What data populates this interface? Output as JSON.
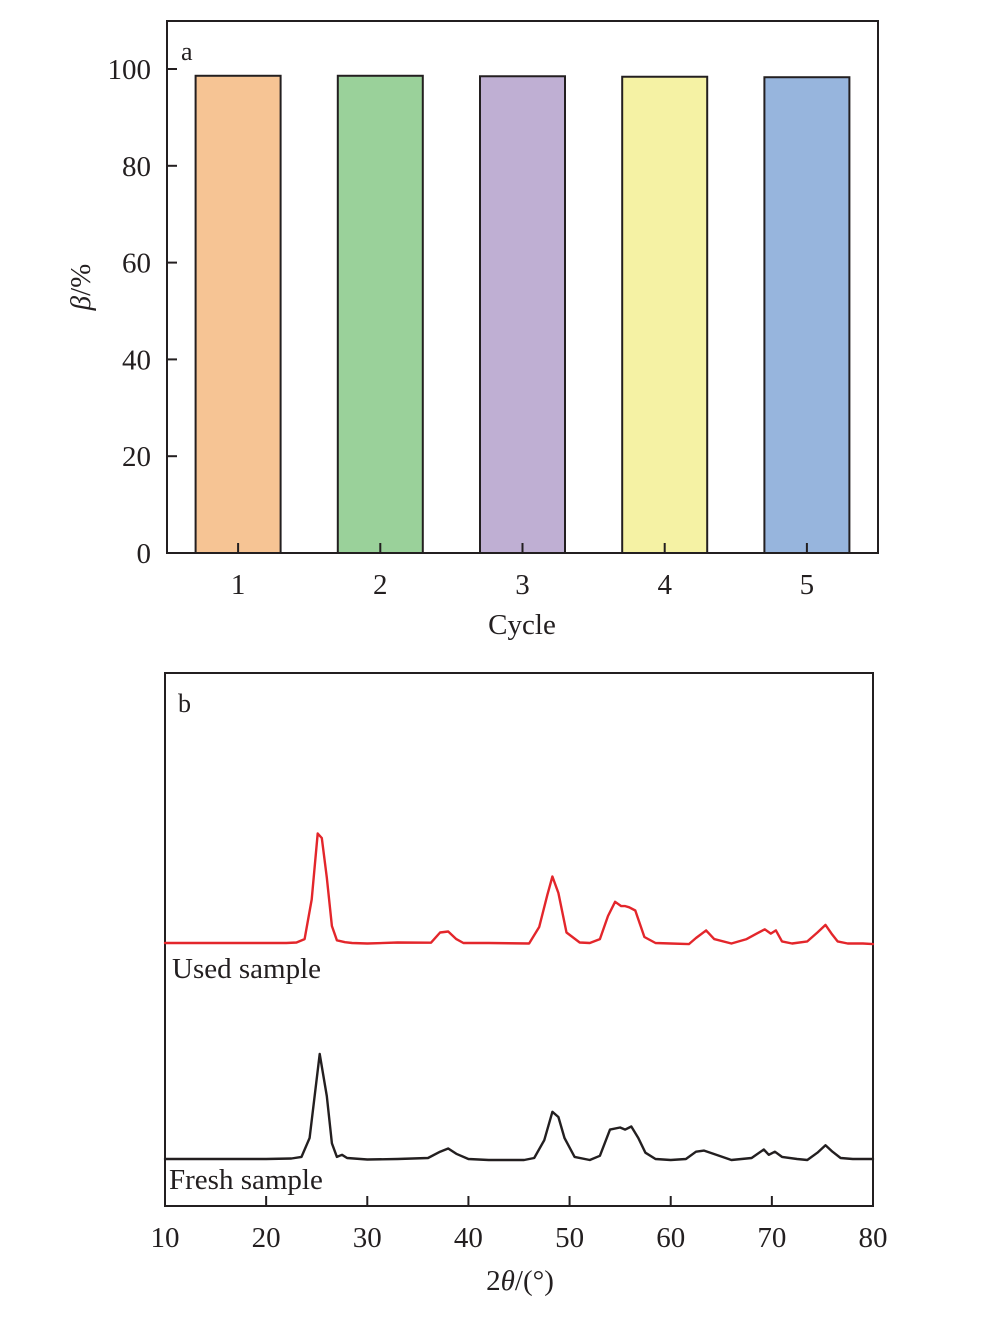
{
  "chart_data": [
    {
      "type": "bar",
      "panel_label": "a",
      "categories": [
        "1",
        "2",
        "3",
        "4",
        "5"
      ],
      "values": [
        98.6,
        98.6,
        98.5,
        98.4,
        98.3
      ],
      "bar_colors": [
        "#f6c494",
        "#9ad19a",
        "#bfafd3",
        "#f5f2a4",
        "#97b5dd"
      ],
      "xlabel": "Cycle",
      "ylabel_symbol": "β",
      "ylabel_unit": "/%",
      "ylim": [
        0,
        110
      ],
      "yticks": [
        0,
        20,
        40,
        60,
        80,
        100
      ],
      "grid": false
    },
    {
      "type": "line",
      "panel_label": "b",
      "xlabel_prefix": "2",
      "xlabel_symbol": "θ",
      "xlabel_unit": "/(°)",
      "xlim": [
        10,
        80
      ],
      "xticks": [
        10,
        20,
        30,
        40,
        50,
        60,
        70,
        80
      ],
      "y_axis_values_shown": false,
      "grid": false,
      "series": [
        {
          "name": "Used sample",
          "color": "#e3262b",
          "baseline": 0.5,
          "points": [
            [
              10,
              0.5
            ],
            [
              20,
              0.5
            ],
            [
              22,
              0.5
            ],
            [
              23,
              1
            ],
            [
              23.8,
              4
            ],
            [
              24.5,
              40
            ],
            [
              25.1,
              100
            ],
            [
              25.5,
              96
            ],
            [
              26,
              60
            ],
            [
              26.5,
              16
            ],
            [
              27,
              3
            ],
            [
              27.8,
              1.2
            ],
            [
              28.5,
              0.5
            ],
            [
              30,
              0
            ],
            [
              33,
              1
            ],
            [
              36.3,
              0.8
            ],
            [
              37.2,
              10
            ],
            [
              38,
              11
            ],
            [
              38.8,
              4
            ],
            [
              39.5,
              0.5
            ],
            [
              42,
              0.5
            ],
            [
              46,
              0
            ],
            [
              47,
              15
            ],
            [
              47.8,
              44
            ],
            [
              48.3,
              61
            ],
            [
              48.9,
              46
            ],
            [
              49.7,
              10
            ],
            [
              51,
              1
            ],
            [
              52,
              0.5
            ],
            [
              53,
              4
            ],
            [
              53.8,
              25
            ],
            [
              54.5,
              38
            ],
            [
              55.1,
              34
            ],
            [
              55.5,
              34
            ],
            [
              55.9,
              33
            ],
            [
              56.5,
              30
            ],
            [
              57.4,
              6
            ],
            [
              58.5,
              0.5
            ],
            [
              60,
              0
            ],
            [
              61.8,
              -0.5
            ],
            [
              62.5,
              5
            ],
            [
              63.5,
              12
            ],
            [
              64.3,
              4
            ],
            [
              66,
              0
            ],
            [
              67.5,
              4
            ],
            [
              68.5,
              9
            ],
            [
              69.3,
              13
            ],
            [
              69.9,
              9
            ],
            [
              70.4,
              12
            ],
            [
              71,
              2
            ],
            [
              72,
              0
            ],
            [
              73.5,
              2
            ],
            [
              74.5,
              10
            ],
            [
              75.3,
              17
            ],
            [
              75.9,
              9
            ],
            [
              76.5,
              2
            ],
            [
              77.5,
              0
            ],
            [
              79,
              0
            ],
            [
              80,
              -0.5
            ]
          ]
        },
        {
          "name": "Fresh sample",
          "color": "#231f20",
          "baseline": 0,
          "points": [
            [
              10,
              0
            ],
            [
              20,
              0
            ],
            [
              22.5,
              0.5
            ],
            [
              23.5,
              2
            ],
            [
              24.3,
              20
            ],
            [
              25.3,
              100
            ],
            [
              26,
              60
            ],
            [
              26.5,
              15
            ],
            [
              27,
              2
            ],
            [
              27.5,
              4
            ],
            [
              28,
              1
            ],
            [
              30,
              -0.5
            ],
            [
              33,
              0
            ],
            [
              36,
              1
            ],
            [
              37.2,
              7
            ],
            [
              38,
              10
            ],
            [
              38.8,
              5
            ],
            [
              40,
              0
            ],
            [
              42,
              -1
            ],
            [
              45.5,
              -1
            ],
            [
              46.5,
              1
            ],
            [
              47.5,
              18
            ],
            [
              48.3,
              45
            ],
            [
              48.9,
              40
            ],
            [
              49.5,
              20
            ],
            [
              50.5,
              2
            ],
            [
              52,
              -1
            ],
            [
              53,
              3
            ],
            [
              54,
              28
            ],
            [
              55,
              30
            ],
            [
              55.5,
              28
            ],
            [
              56.1,
              31
            ],
            [
              56.8,
              20
            ],
            [
              57.5,
              6
            ],
            [
              58.5,
              0
            ],
            [
              60,
              -1
            ],
            [
              61.5,
              0
            ],
            [
              62.5,
              7
            ],
            [
              63.3,
              8
            ],
            [
              64.5,
              4
            ],
            [
              66,
              -1
            ],
            [
              68,
              1
            ],
            [
              69.2,
              9
            ],
            [
              69.7,
              4
            ],
            [
              70.3,
              7
            ],
            [
              71,
              2
            ],
            [
              72.5,
              0
            ],
            [
              73.5,
              -1
            ],
            [
              74.5,
              6
            ],
            [
              75.3,
              13
            ],
            [
              76,
              7
            ],
            [
              76.8,
              1
            ],
            [
              78,
              0
            ],
            [
              80,
              0
            ]
          ]
        }
      ]
    }
  ]
}
